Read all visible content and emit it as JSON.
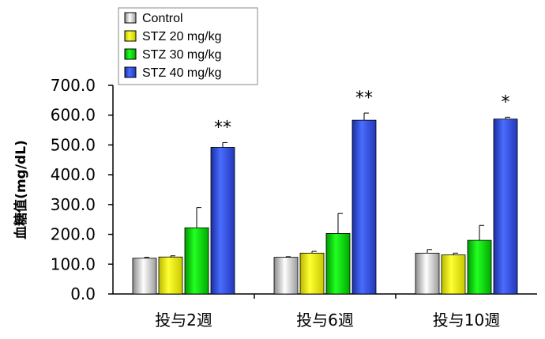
{
  "chart_data": {
    "type": "bar",
    "title": "",
    "xlabel": "",
    "ylabel": "血糖值(mg/dL)",
    "ylim": [
      0,
      700
    ],
    "yticks": [
      "0.0",
      "100.0",
      "200.0",
      "300.0",
      "400.0",
      "500.0",
      "600.0",
      "700.0"
    ],
    "categories": [
      "投与2週",
      "投与6週",
      "投与10週"
    ],
    "legend_position": "top-left",
    "grid": false,
    "series": [
      {
        "name": "Control",
        "color": "#d8d8d8",
        "values": [
          120,
          123,
          137
        ],
        "errors": [
          3,
          2,
          12
        ]
      },
      {
        "name": "STZ 20 mg/kg",
        "color": "#ffff00",
        "values": [
          124,
          137,
          131
        ],
        "errors": [
          4,
          6,
          6
        ]
      },
      {
        "name": "STZ 30 mg/kg",
        "color": "#00dd00",
        "values": [
          222,
          203,
          180
        ],
        "errors": [
          68,
          67,
          50
        ]
      },
      {
        "name": "STZ 40 mg/kg",
        "color": "#2b4fe0",
        "values": [
          492,
          583,
          587
        ],
        "errors": [
          16,
          24,
          6
        ]
      }
    ],
    "significance": [
      "**",
      "**",
      "*"
    ]
  }
}
